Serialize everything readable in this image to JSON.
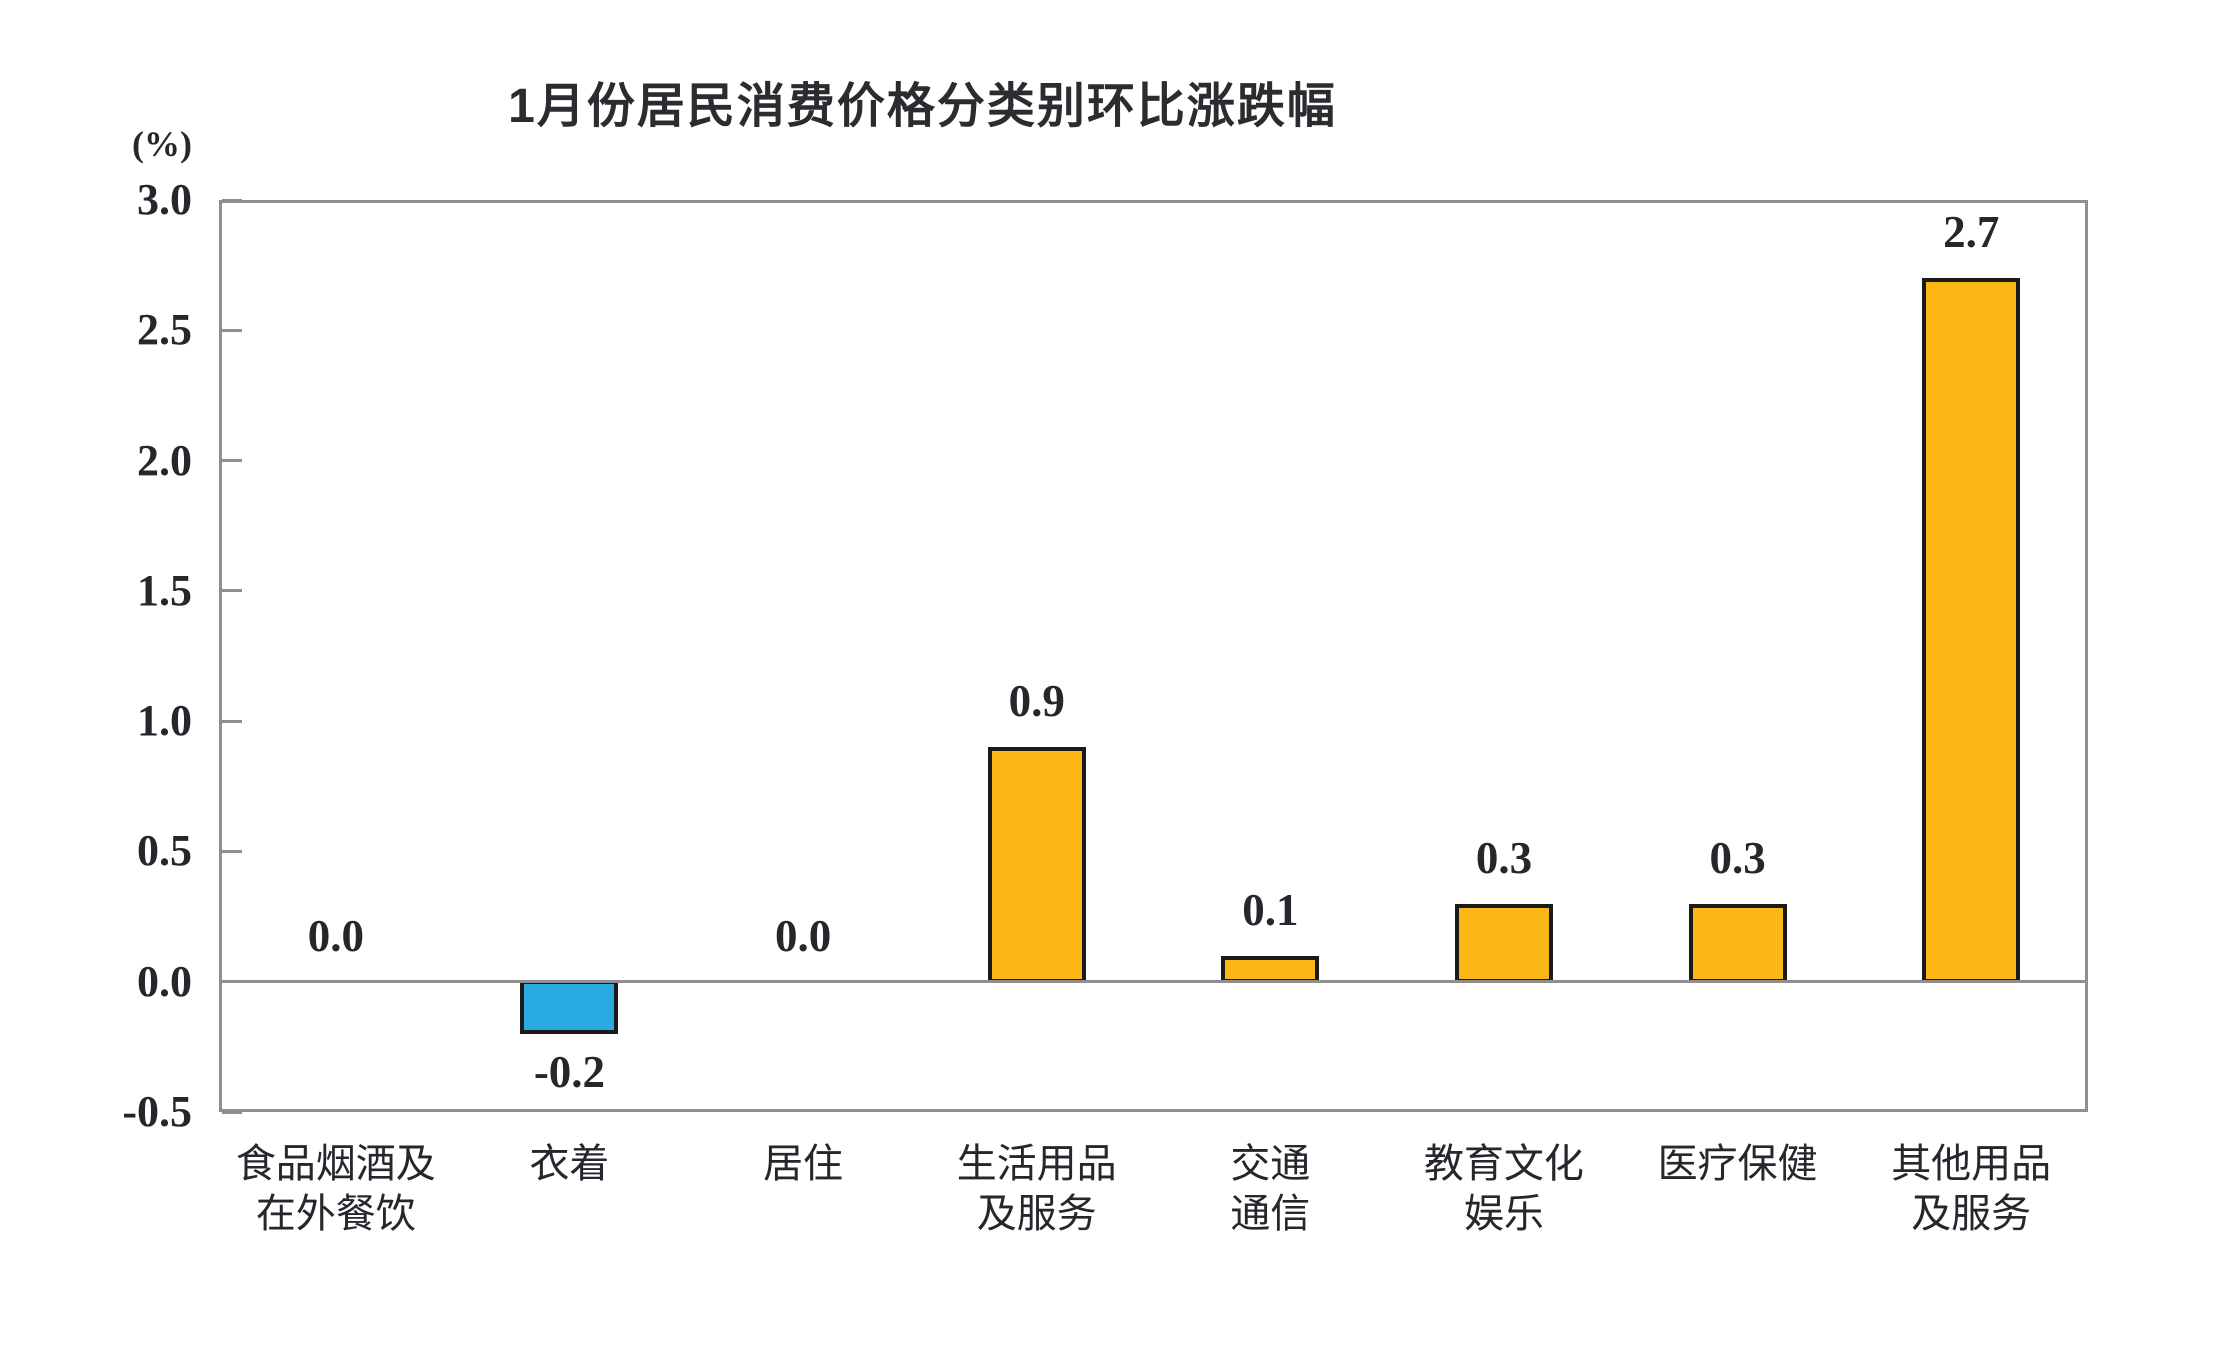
{
  "chart_data": {
    "type": "bar",
    "title": "1月份居民消费价格分类别环比涨跌幅",
    "y_axis_unit": "(%)",
    "categories": [
      "食品烟酒及\n在外餐饮",
      "衣着",
      "居住",
      "生活用品\n及服务",
      "交通\n通信",
      "教育文化\n娱乐",
      "医疗保健",
      "其他用品\n及服务"
    ],
    "values": [
      0.0,
      -0.2,
      0.0,
      0.9,
      0.1,
      0.3,
      0.3,
      2.7
    ],
    "value_labels": [
      "0.0",
      "-0.2",
      "0.0",
      "0.9",
      "0.1",
      "0.3",
      "0.3",
      "2.7"
    ],
    "y_ticks": [
      3.0,
      2.5,
      2.0,
      1.5,
      1.0,
      0.5,
      0.0,
      -0.5
    ],
    "y_tick_labels": [
      "3.0",
      "2.5",
      "2.0",
      "1.5",
      "1.0",
      "0.5",
      "0.0",
      "-0.5"
    ],
    "ylim": [
      -0.5,
      3.0
    ],
    "xlabel": "",
    "ylabel": "(%)",
    "grid": false,
    "legend": false,
    "layout": {
      "baseline_value": 0,
      "tick_marks": "inside-left",
      "plot_border": true
    },
    "colors": {
      "positive_bar": "#FBB716",
      "negative_bar": "#29ABE2",
      "bar_border": "#1A1A1A",
      "axis_line": "#8F8F8F",
      "text": "#26262C"
    }
  }
}
